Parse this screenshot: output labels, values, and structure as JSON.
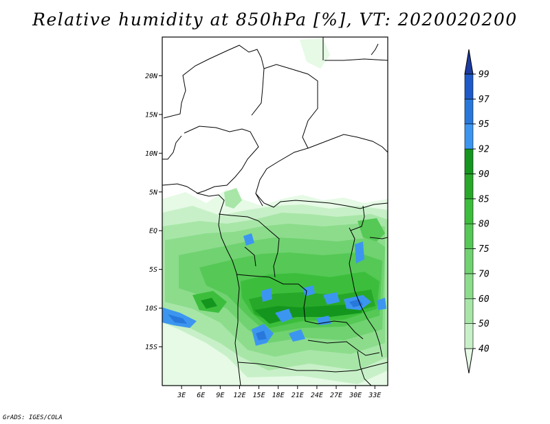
{
  "title": "Relative humidity at 850hPa [%], VT: 2020020200",
  "credit": "GrADS: IGES/COLA",
  "map": {
    "lon_range": [
      0,
      35
    ],
    "lat_range": [
      -20,
      25
    ],
    "lat_ticks": [
      {
        "value": 20,
        "label": "20N"
      },
      {
        "value": 15,
        "label": "15N"
      },
      {
        "value": 10,
        "label": "10N"
      },
      {
        "value": 5,
        "label": "5N"
      },
      {
        "value": 0,
        "label": "EQ"
      },
      {
        "value": -5,
        "label": "5S"
      },
      {
        "value": -10,
        "label": "10S"
      },
      {
        "value": -15,
        "label": "15S"
      }
    ],
    "lon_ticks": [
      {
        "value": 3,
        "label": "3E"
      },
      {
        "value": 6,
        "label": "6E"
      },
      {
        "value": 9,
        "label": "9E"
      },
      {
        "value": 12,
        "label": "12E"
      },
      {
        "value": 15,
        "label": "15E"
      },
      {
        "value": 18,
        "label": "18E"
      },
      {
        "value": 21,
        "label": "21E"
      },
      {
        "value": 24,
        "label": "24E"
      },
      {
        "value": 27,
        "label": "27E"
      },
      {
        "value": 30,
        "label": "30E"
      },
      {
        "value": 33,
        "label": "33E"
      }
    ]
  },
  "colorbar": {
    "levels": [
      "40",
      "50",
      "60",
      "70",
      "75",
      "80",
      "85",
      "90",
      "92",
      "95",
      "97",
      "99"
    ],
    "colors": [
      "#e6fae6",
      "#c8f0c8",
      "#a8e6a8",
      "#8cdc8c",
      "#70d270",
      "#55c855",
      "#3cbe3c",
      "#28a828",
      "#14961e",
      "#3c96f0",
      "#2878dc",
      "#1e5ac8",
      "#1e3ca0"
    ]
  }
}
